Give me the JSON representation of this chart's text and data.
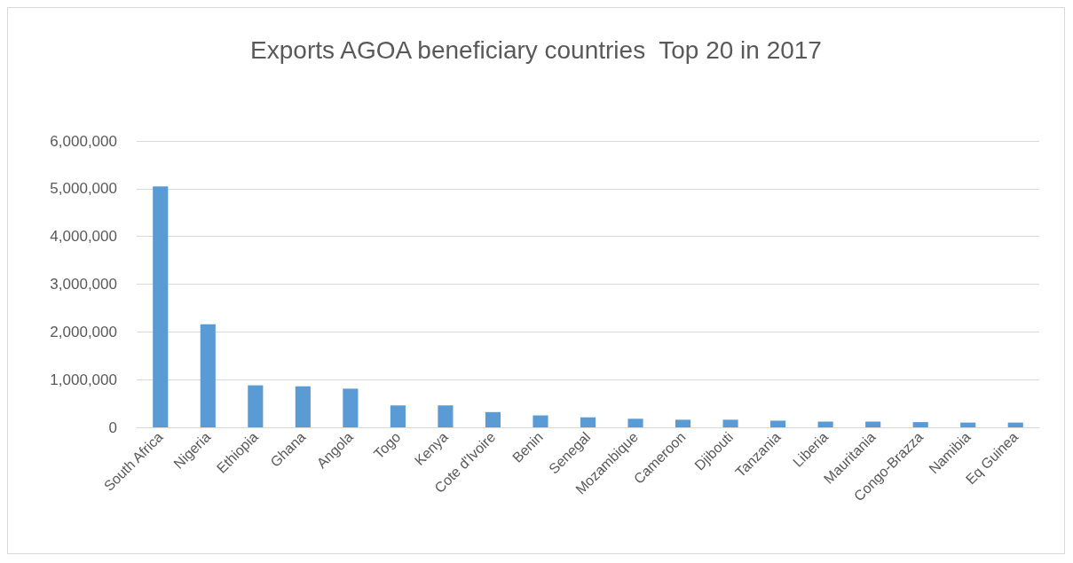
{
  "chart_data": {
    "type": "bar",
    "title": "Exports AGOA beneficiary countries  Top 20 in 2017",
    "categories": [
      "South Africa",
      "Nigeria",
      "Ethiopia",
      "Ghana",
      "Angola",
      "Togo",
      "Kenya",
      "Cote d'Ivoire",
      "Benin",
      "Senegal",
      "Mozambique",
      "Cameroon",
      "Djibouti",
      "Tanzania",
      "Liberia",
      "Mauritania",
      "Congo-Brazza",
      "Namibia",
      "Eq Guinea"
    ],
    "values": [
      5050000,
      2160000,
      880000,
      860000,
      810000,
      460000,
      460000,
      320000,
      250000,
      210000,
      180000,
      160000,
      160000,
      140000,
      120000,
      120000,
      110000,
      100000,
      100000
    ],
    "color": "#5b9bd5",
    "ylim": [
      0,
      6000000
    ],
    "yticks": [
      0,
      {
        "value": 1000000,
        "label": "1,000,000"
      },
      {
        "value": 2000000,
        "label": "2,000,000"
      },
      {
        "value": 3000000,
        "label": "3,000,000"
      },
      {
        "value": 4000000,
        "label": "4,000,000"
      },
      {
        "value": 5000000,
        "label": "5,000,000"
      },
      {
        "value": 6000000,
        "label": "6,000,000"
      }
    ],
    "grid": "y"
  }
}
